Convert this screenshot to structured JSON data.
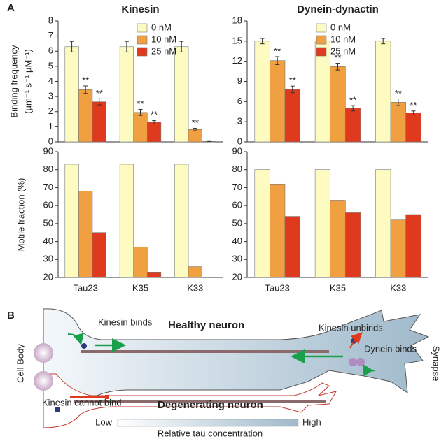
{
  "panel_labels": [
    "A",
    "B"
  ],
  "chart_data": [
    {
      "type": "bar",
      "title": "Kinesin",
      "ylabel": [
        "Binding frequency",
        "(µm⁻¹ s⁻¹ µM⁻¹)"
      ],
      "ylim": [
        0,
        8
      ],
      "yticks": [
        0,
        1,
        2,
        3,
        4,
        5,
        6,
        7,
        8
      ],
      "legend": "top-right",
      "series": [
        {
          "name": "0 nM",
          "color": "#fdfbc0",
          "values": [
            6.3,
            6.3,
            6.3
          ],
          "errors": [
            0.35,
            0.35,
            0.35
          ]
        },
        {
          "name": "10 nM",
          "color": "#f0a040",
          "values": [
            3.45,
            1.95,
            0.82
          ],
          "errors": [
            0.25,
            0.2,
            0.08
          ],
          "annotations": [
            "**",
            "**",
            "**"
          ]
        },
        {
          "name": "25 nM",
          "color": "#e03a1e",
          "values": [
            2.65,
            1.3,
            0.03
          ],
          "errors": [
            0.2,
            0.12,
            0
          ],
          "annotations": [
            "**",
            "**",
            null
          ]
        }
      ]
    },
    {
      "type": "bar",
      "title": "Dynein-dynactin",
      "ylim": [
        0,
        18
      ],
      "yticks": [
        0,
        3,
        6,
        9,
        12,
        15,
        18
      ],
      "legend": "top-right",
      "series": [
        {
          "name": "0 nM",
          "color": "#fdfbc0",
          "values": [
            15.0,
            15.0,
            15.0
          ],
          "errors": [
            0.4,
            0.4,
            0.4
          ]
        },
        {
          "name": "10 nM",
          "color": "#f0a040",
          "values": [
            12.1,
            11.2,
            5.9
          ],
          "errors": [
            0.6,
            0.5,
            0.5
          ],
          "annotations": [
            "**",
            "**",
            "**"
          ]
        },
        {
          "name": "25 nM",
          "color": "#e03a1e",
          "values": [
            7.8,
            5.0,
            4.3
          ],
          "errors": [
            0.5,
            0.4,
            0.3
          ],
          "annotations": [
            "**",
            "**",
            "**"
          ]
        }
      ]
    },
    {
      "type": "bar",
      "ylabel": [
        "Motile fraction (%)"
      ],
      "categories": [
        "Tau23",
        "K35",
        "K33"
      ],
      "ylim": [
        20,
        90
      ],
      "yticks": [
        20,
        30,
        40,
        50,
        60,
        70,
        80,
        90
      ],
      "series": [
        {
          "color": "#fdfbc0",
          "values": [
            83,
            83,
            83
          ]
        },
        {
          "color": "#f0a040",
          "values": [
            68,
            37,
            26
          ]
        },
        {
          "color": "#e03a1e",
          "values": [
            45,
            23,
            null
          ]
        }
      ]
    },
    {
      "type": "bar",
      "categories": [
        "Tau23",
        "K35",
        "K33"
      ],
      "ylim": [
        20,
        90
      ],
      "yticks": [
        20,
        30,
        40,
        50,
        60,
        70,
        80,
        90
      ],
      "series": [
        {
          "color": "#fdfbc0",
          "values": [
            80,
            80,
            80
          ]
        },
        {
          "color": "#f0a040",
          "values": [
            72,
            63,
            52
          ]
        },
        {
          "color": "#e03a1e",
          "values": [
            54,
            56,
            55
          ]
        }
      ]
    }
  ],
  "panel_b": {
    "healthy": "Healthy neuron",
    "degenerating": "Degenerating neuron",
    "cell_body": "Cell Body",
    "synapse": "Synapse",
    "kinesin_binds": "Kinesin binds",
    "kinesin_unbinds": "Kinesin unbinds",
    "dynein_binds": "Dynein binds",
    "kinesin_cannot_bind": "Kinesin cannot bind",
    "low": "Low",
    "high": "High",
    "scale_label": "Relative tau concentration"
  }
}
